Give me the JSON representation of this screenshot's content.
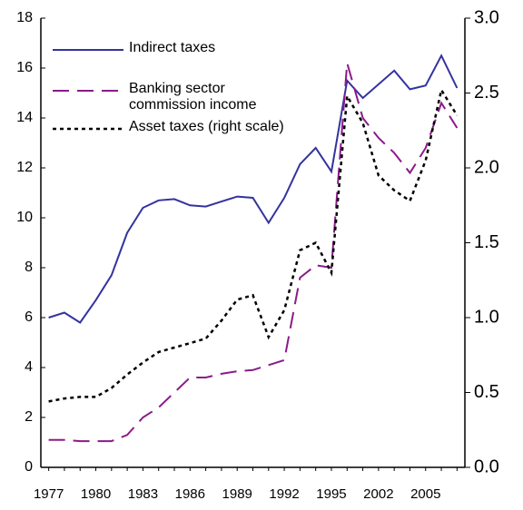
{
  "chart_data": {
    "type": "line",
    "categories": [
      "1977",
      null,
      null,
      "1980",
      null,
      null,
      "1983",
      null,
      null,
      "1986",
      null,
      null,
      "1989",
      null,
      null,
      "1992",
      null,
      null,
      "1995",
      null,
      null,
      "2002",
      null,
      null,
      "2005",
      null,
      null
    ],
    "series": [
      {
        "name": "Indirect taxes",
        "color": "#3333a0",
        "dash": "solid",
        "values": [
          6.0,
          6.2,
          5.8,
          6.7,
          7.7,
          9.4,
          10.4,
          10.7,
          10.75,
          10.5,
          10.45,
          10.65,
          10.85,
          10.8,
          9.8,
          10.8,
          12.15,
          12.8,
          11.85,
          15.5,
          14.8,
          15.35,
          15.9,
          15.15,
          15.3,
          16.5,
          15.2
        ]
      },
      {
        "name": "Banking sector commission income",
        "color": "#8b1a89",
        "dash": "long",
        "values": [
          1.1,
          1.1,
          1.05,
          1.05,
          1.05,
          1.3,
          2.0,
          2.4,
          3.0,
          3.6,
          3.6,
          3.75,
          3.85,
          3.9,
          4.1,
          4.3,
          7.6,
          8.1,
          8.0,
          16.2,
          14.0,
          13.2,
          12.6,
          11.8,
          12.8,
          14.6,
          13.6
        ]
      },
      {
        "name": "Asset taxes (right scale)",
        "color": "#000000",
        "dash": "dot",
        "axis": "y2",
        "values": [
          0.44,
          0.46,
          0.47,
          0.47,
          0.53,
          0.62,
          0.7,
          0.77,
          0.8,
          0.83,
          0.86,
          0.98,
          1.12,
          1.15,
          0.87,
          1.05,
          1.45,
          1.5,
          1.3,
          2.48,
          2.3,
          1.95,
          1.85,
          1.78,
          2.05,
          2.52,
          2.35
        ]
      }
    ],
    "ylim": [
      0,
      18
    ],
    "yticks": [
      0,
      2,
      4,
      6,
      8,
      10,
      12,
      14,
      16,
      18
    ],
    "y2lim": [
      0,
      3
    ],
    "y2ticks": [
      {
        "value": 0,
        "label": "0.0"
      },
      0.5,
      {
        "value": 1,
        "label": "1.0"
      },
      1.5,
      {
        "value": 2,
        "label": "2.0"
      },
      2.5,
      {
        "value": 3,
        "label": "3.0"
      }
    ]
  }
}
